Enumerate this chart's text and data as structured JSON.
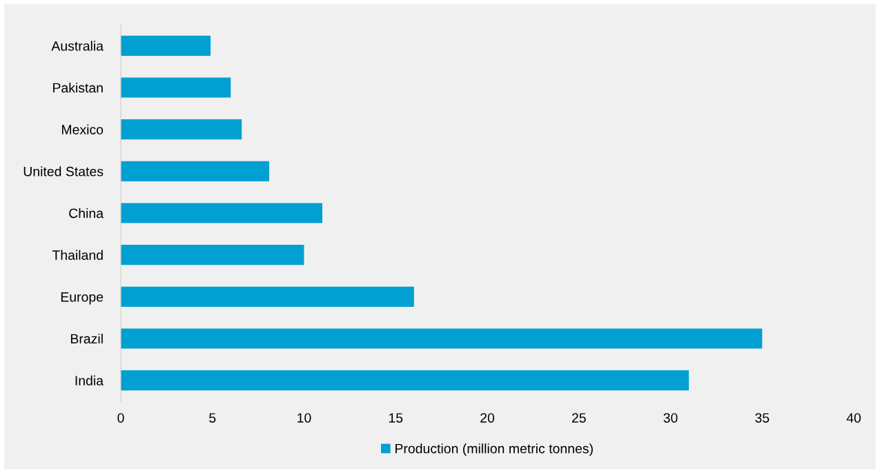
{
  "chart_data": {
    "type": "bar",
    "orientation": "horizontal",
    "categories": [
      "Australia",
      "Pakistan",
      "Mexico",
      "United States",
      "China",
      "Thailand",
      "Europe",
      "Brazil",
      "India"
    ],
    "series": [
      {
        "name": "Production (million metric tonnes)",
        "color": "#00a0d2",
        "values": [
          4.9,
          6.0,
          6.6,
          8.1,
          11.0,
          10.0,
          16.0,
          35.0,
          31.0
        ]
      }
    ],
    "xlim": [
      0,
      40
    ],
    "xticks": [
      0,
      5,
      10,
      15,
      20,
      25,
      30,
      35,
      40
    ],
    "grid": false,
    "legend": "bottom"
  }
}
